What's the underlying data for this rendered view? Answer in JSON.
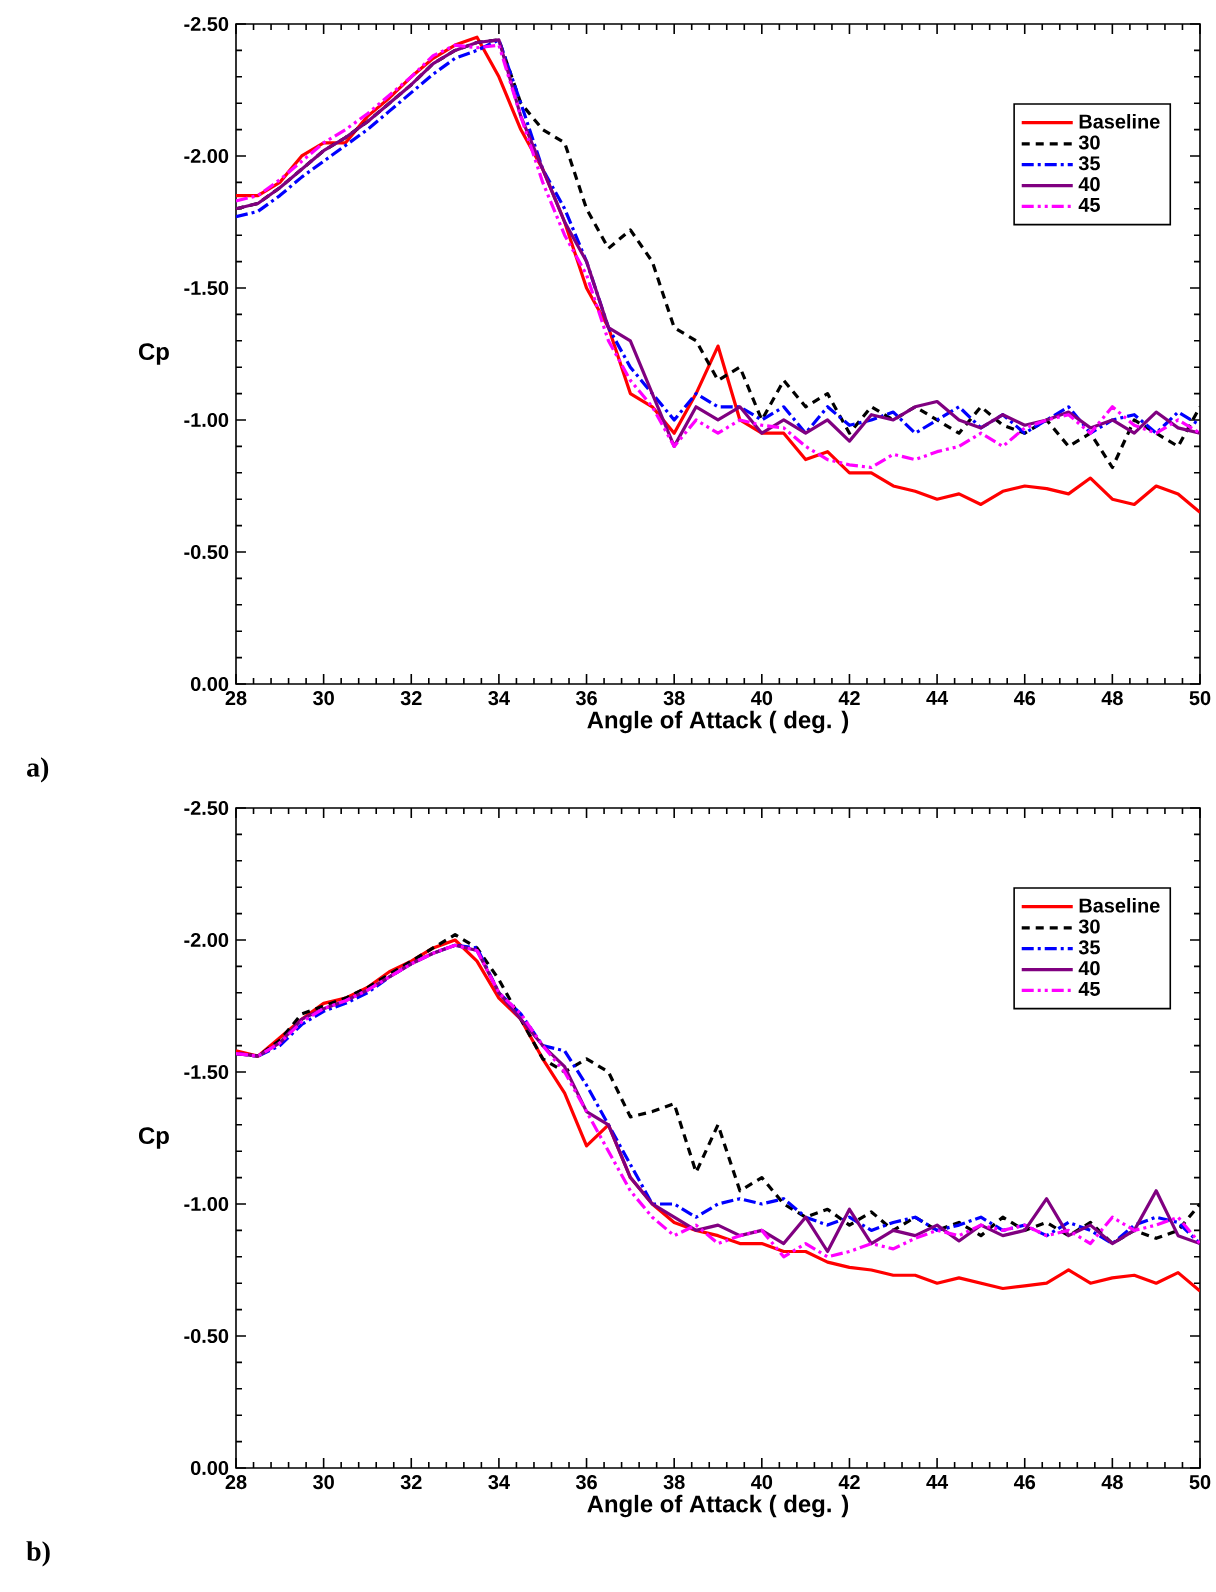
{
  "chart_data": [
    {
      "type": "line",
      "xlabel": "Angle of Attack ( deg. )",
      "ylabel": "Cp",
      "annotations": [
        "a)"
      ],
      "legend": "top right",
      "grid": false,
      "xlim": [
        28,
        50
      ],
      "xticks": [
        28,
        30,
        32,
        34,
        36,
        38,
        40,
        42,
        44,
        46,
        48,
        50
      ],
      "ylim": [
        0,
        -2.5
      ],
      "yticks": [
        {
          "value": 0,
          "label": "0.00"
        },
        {
          "value": -0.5,
          "label": "-0.50"
        },
        {
          "value": -1,
          "label": "-1.00"
        },
        {
          "value": -1.5,
          "label": "-1.50"
        },
        {
          "value": -2,
          "label": "-2.00"
        },
        {
          "value": -2.5,
          "label": "-2.50"
        }
      ],
      "x": [
        28,
        28.5,
        29,
        29.5,
        30,
        30.5,
        31,
        31.5,
        32,
        32.5,
        33,
        33.5,
        34,
        34.5,
        35,
        35.5,
        36,
        36.5,
        37,
        37.5,
        38,
        38.5,
        39,
        39.5,
        40,
        40.5,
        41,
        41.5,
        42,
        42.5,
        43,
        43.5,
        44,
        44.5,
        45,
        45.5,
        46,
        46.5,
        47,
        47.5,
        48,
        48.5,
        49,
        49.5,
        50
      ],
      "series": [
        {
          "name": "Baseline",
          "color": "#ff0000",
          "line_style": "solid",
          "values": [
            -1.85,
            -1.85,
            -1.9,
            -2.0,
            -2.05,
            -2.05,
            -2.15,
            -2.22,
            -2.3,
            -2.37,
            -2.42,
            -2.45,
            -2.3,
            -2.1,
            -1.95,
            -1.75,
            -1.5,
            -1.35,
            -1.1,
            -1.05,
            -0.95,
            -1.1,
            -1.28,
            -1.0,
            -0.95,
            -0.95,
            -0.85,
            -0.88,
            -0.8,
            -0.8,
            -0.75,
            -0.73,
            -0.7,
            -0.72,
            -0.68,
            -0.73,
            -0.75,
            -0.74,
            -0.72,
            -0.78,
            -0.7,
            -0.68,
            -0.75,
            -0.72,
            -0.65
          ]
        },
        {
          "name": "30",
          "color": "#000000",
          "line_style": "dashed",
          "values": [
            -1.8,
            -1.82,
            -1.88,
            -1.95,
            -2.02,
            -2.07,
            -2.13,
            -2.2,
            -2.27,
            -2.35,
            -2.4,
            -2.43,
            -2.44,
            -2.2,
            -2.1,
            -2.05,
            -1.8,
            -1.65,
            -1.72,
            -1.6,
            -1.35,
            -1.3,
            -1.15,
            -1.2,
            -1.0,
            -1.15,
            -1.05,
            -1.1,
            -0.95,
            -1.05,
            -1.0,
            -1.05,
            -1.0,
            -0.95,
            -1.05,
            -0.98,
            -0.95,
            -1.0,
            -0.9,
            -0.95,
            -0.82,
            -1.0,
            -0.95,
            -0.9,
            -1.05
          ]
        },
        {
          "name": "35",
          "color": "#0000ff",
          "line_style": "dashdot",
          "values": [
            -1.77,
            -1.79,
            -1.85,
            -1.92,
            -1.98,
            -2.04,
            -2.1,
            -2.17,
            -2.24,
            -2.31,
            -2.37,
            -2.4,
            -2.44,
            -2.2,
            -1.95,
            -1.8,
            -1.6,
            -1.35,
            -1.2,
            -1.1,
            -1.0,
            -1.1,
            -1.05,
            -1.05,
            -1.0,
            -1.05,
            -0.95,
            -1.05,
            -0.98,
            -1.0,
            -1.03,
            -0.95,
            -1.0,
            -1.05,
            -0.97,
            -1.02,
            -0.95,
            -1.0,
            -1.05,
            -0.95,
            -1.0,
            -1.02,
            -0.95,
            -1.03,
            -0.98
          ]
        },
        {
          "name": "40",
          "color": "#800080",
          "line_style": "solid",
          "values": [
            -1.8,
            -1.82,
            -1.88,
            -1.95,
            -2.02,
            -2.07,
            -2.13,
            -2.2,
            -2.27,
            -2.35,
            -2.4,
            -2.43,
            -2.44,
            -2.15,
            -1.95,
            -1.75,
            -1.6,
            -1.35,
            -1.3,
            -1.1,
            -0.9,
            -1.05,
            -1.0,
            -1.05,
            -0.95,
            -1.0,
            -0.95,
            -1.0,
            -0.92,
            -1.02,
            -1.0,
            -1.05,
            -1.07,
            -1.0,
            -0.97,
            -1.02,
            -0.98,
            -1.0,
            -1.03,
            -0.97,
            -1.0,
            -0.95,
            -1.03,
            -0.97,
            -0.95
          ]
        },
        {
          "name": "45",
          "color": "#ff00ff",
          "line_style": "dashdotdot",
          "values": [
            -1.83,
            -1.85,
            -1.91,
            -1.98,
            -2.05,
            -2.1,
            -2.16,
            -2.23,
            -2.3,
            -2.38,
            -2.42,
            -2.41,
            -2.42,
            -2.15,
            -1.9,
            -1.7,
            -1.55,
            -1.3,
            -1.15,
            -1.05,
            -0.9,
            -1.0,
            -0.95,
            -1.0,
            -0.98,
            -0.97,
            -0.9,
            -0.85,
            -0.83,
            -0.82,
            -0.87,
            -0.85,
            -0.88,
            -0.9,
            -0.95,
            -0.9,
            -0.97,
            -1.0,
            -1.02,
            -0.95,
            -1.05,
            -0.98,
            -0.95,
            -1.0,
            -0.95
          ]
        }
      ]
    },
    {
      "type": "line",
      "xlabel": "Angle of Attack ( deg. )",
      "ylabel": "Cp",
      "annotations": [
        "b)"
      ],
      "legend": "top right",
      "grid": false,
      "xlim": [
        28,
        50
      ],
      "xticks": [
        28,
        30,
        32,
        34,
        36,
        38,
        40,
        42,
        44,
        46,
        48,
        50
      ],
      "ylim": [
        0,
        -2.5
      ],
      "yticks": [
        {
          "value": 0,
          "label": "0.00"
        },
        {
          "value": -0.5,
          "label": "-0.50"
        },
        {
          "value": -1,
          "label": "-1.00"
        },
        {
          "value": -1.5,
          "label": "-1.50"
        },
        {
          "value": -2,
          "label": "-2.00"
        },
        {
          "value": -2.5,
          "label": "-2.50"
        }
      ],
      "x": [
        28,
        28.5,
        29,
        29.5,
        30,
        30.5,
        31,
        31.5,
        32,
        32.5,
        33,
        33.5,
        34,
        34.5,
        35,
        35.5,
        36,
        36.5,
        37,
        37.5,
        38,
        38.5,
        39,
        39.5,
        40,
        40.5,
        41,
        41.5,
        42,
        42.5,
        43,
        43.5,
        44,
        44.5,
        45,
        45.5,
        46,
        46.5,
        47,
        47.5,
        48,
        48.5,
        49,
        49.5,
        50
      ],
      "series": [
        {
          "name": "Baseline",
          "color": "#ff0000",
          "line_style": "solid",
          "values": [
            -1.58,
            -1.56,
            -1.63,
            -1.7,
            -1.76,
            -1.78,
            -1.82,
            -1.88,
            -1.92,
            -1.97,
            -2.0,
            -1.92,
            -1.78,
            -1.7,
            -1.55,
            -1.42,
            -1.22,
            -1.3,
            -1.1,
            -1.0,
            -0.93,
            -0.9,
            -0.88,
            -0.85,
            -0.85,
            -0.82,
            -0.82,
            -0.78,
            -0.76,
            -0.75,
            -0.73,
            -0.73,
            -0.7,
            -0.72,
            -0.7,
            -0.68,
            -0.69,
            -0.7,
            -0.75,
            -0.7,
            -0.72,
            -0.73,
            -0.7,
            -0.74,
            -0.67
          ]
        },
        {
          "name": "30",
          "color": "#000000",
          "line_style": "dashed",
          "values": [
            -1.57,
            -1.56,
            -1.62,
            -1.72,
            -1.75,
            -1.78,
            -1.82,
            -1.87,
            -1.92,
            -1.97,
            -2.02,
            -1.97,
            -1.85,
            -1.7,
            -1.55,
            -1.5,
            -1.55,
            -1.5,
            -1.33,
            -1.35,
            -1.38,
            -1.12,
            -1.3,
            -1.05,
            -1.1,
            -1.0,
            -0.95,
            -0.98,
            -0.92,
            -0.97,
            -0.9,
            -0.95,
            -0.9,
            -0.93,
            -0.88,
            -0.95,
            -0.9,
            -0.93,
            -0.88,
            -0.93,
            -0.85,
            -0.9,
            -0.87,
            -0.9,
            -1.0
          ]
        },
        {
          "name": "35",
          "color": "#0000ff",
          "line_style": "dashdot",
          "values": [
            -1.57,
            -1.56,
            -1.6,
            -1.68,
            -1.73,
            -1.76,
            -1.8,
            -1.86,
            -1.91,
            -1.95,
            -1.98,
            -1.97,
            -1.8,
            -1.72,
            -1.6,
            -1.58,
            -1.45,
            -1.3,
            -1.15,
            -1.0,
            -1.0,
            -0.95,
            -1.0,
            -1.02,
            -1.0,
            -1.02,
            -0.95,
            -0.92,
            -0.95,
            -0.9,
            -0.93,
            -0.95,
            -0.9,
            -0.92,
            -0.95,
            -0.9,
            -0.92,
            -0.88,
            -0.93,
            -0.9,
            -0.85,
            -0.92,
            -0.95,
            -0.93,
            -0.85
          ]
        },
        {
          "name": "40",
          "color": "#800080",
          "line_style": "solid",
          "values": [
            -1.57,
            -1.56,
            -1.61,
            -1.7,
            -1.74,
            -1.77,
            -1.81,
            -1.86,
            -1.91,
            -1.95,
            -1.98,
            -1.96,
            -1.8,
            -1.7,
            -1.6,
            -1.52,
            -1.35,
            -1.3,
            -1.1,
            -1.0,
            -0.95,
            -0.9,
            -0.92,
            -0.88,
            -0.9,
            -0.85,
            -0.95,
            -0.82,
            -0.98,
            -0.85,
            -0.9,
            -0.88,
            -0.92,
            -0.86,
            -0.92,
            -0.88,
            -0.9,
            -1.02,
            -0.88,
            -0.92,
            -0.85,
            -0.9,
            -1.05,
            -0.88,
            -0.85
          ]
        },
        {
          "name": "45",
          "color": "#ff00ff",
          "line_style": "dashdotdot",
          "values": [
            -1.57,
            -1.56,
            -1.61,
            -1.69,
            -1.74,
            -1.77,
            -1.81,
            -1.86,
            -1.91,
            -1.95,
            -1.98,
            -1.96,
            -1.8,
            -1.72,
            -1.6,
            -1.5,
            -1.35,
            -1.2,
            -1.05,
            -0.95,
            -0.88,
            -0.92,
            -0.85,
            -0.88,
            -0.9,
            -0.8,
            -0.85,
            -0.8,
            -0.82,
            -0.85,
            -0.83,
            -0.87,
            -0.9,
            -0.88,
            -0.92,
            -0.9,
            -0.92,
            -0.88,
            -0.9,
            -0.85,
            -0.95,
            -0.9,
            -0.92,
            -0.95,
            -0.85
          ]
        }
      ]
    }
  ]
}
